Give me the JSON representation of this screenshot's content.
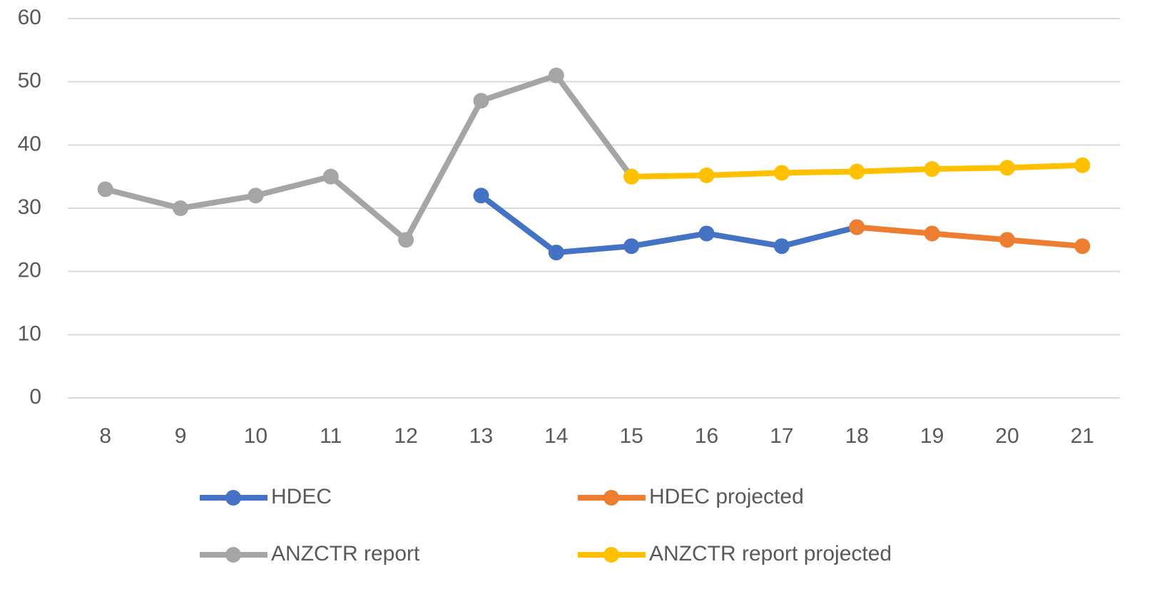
{
  "chart_data": {
    "type": "line",
    "categories": [
      "8",
      "9",
      "10",
      "11",
      "12",
      "13",
      "14",
      "15",
      "16",
      "17",
      "18",
      "19",
      "20",
      "21"
    ],
    "series": [
      {
        "name": "HDEC",
        "color": "#4472c4",
        "values": [
          null,
          null,
          null,
          null,
          null,
          32,
          23,
          24,
          26,
          24,
          27,
          null,
          null,
          null
        ]
      },
      {
        "name": "HDEC projected",
        "color": "#ed7d31",
        "values": [
          null,
          null,
          null,
          null,
          null,
          null,
          null,
          null,
          null,
          null,
          27,
          26,
          25,
          24
        ]
      },
      {
        "name": "ANZCTR report",
        "color": "#a5a5a5",
        "values": [
          33,
          30,
          32,
          35,
          25,
          47,
          51,
          35,
          null,
          null,
          null,
          null,
          null,
          null
        ]
      },
      {
        "name": "ANZCTR report projected",
        "color": "#ffc000",
        "values": [
          null,
          null,
          null,
          null,
          null,
          null,
          null,
          35,
          35.2,
          35.6,
          35.8,
          36.2,
          36.4,
          36.8
        ]
      }
    ],
    "ylim": [
      0,
      60
    ],
    "yticks": [
      0,
      10,
      20,
      30,
      40,
      50,
      60
    ],
    "grid": true,
    "legend": "bottom"
  }
}
